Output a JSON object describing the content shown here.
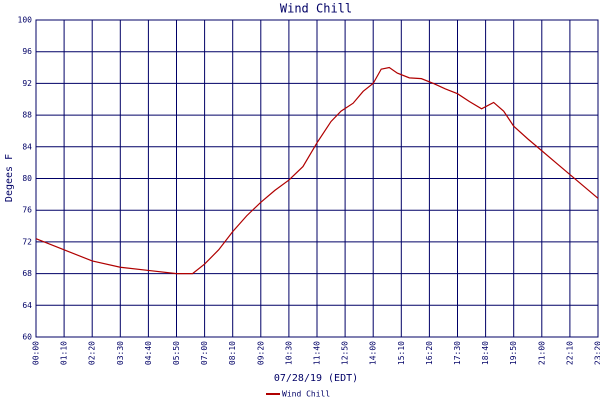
{
  "chart_data": {
    "type": "line",
    "title": "Wind Chill",
    "ylabel": "Degees F",
    "xlabel": "07/28/19 (EDT)",
    "x": [
      0,
      70,
      140,
      210,
      280,
      350,
      390,
      420,
      455,
      490,
      525,
      560,
      595,
      630,
      665,
      700,
      735,
      760,
      790,
      815,
      840,
      860,
      880,
      900,
      930,
      960,
      990,
      1020,
      1050,
      1080,
      1110,
      1140,
      1165,
      1190,
      1225,
      1260,
      1295,
      1330,
      1365,
      1400
    ],
    "series": [
      {
        "name": "Wind Chill",
        "color": "#b00000",
        "values": [
          72.4,
          71,
          69.6,
          68.8,
          68.4,
          68,
          68,
          69.2,
          71,
          73.3,
          75.3,
          77,
          78.5,
          79.8,
          81.5,
          84.5,
          87.2,
          88.5,
          89.5,
          91,
          92,
          93.8,
          94,
          93.3,
          92.7,
          92.6,
          92,
          91.3,
          90.7,
          89.7,
          88.8,
          89.6,
          88.5,
          86.6,
          85,
          83.5,
          82,
          80.5,
          79,
          77.5
        ]
      }
    ],
    "xlim": [
      0,
      1400
    ],
    "xticks": [
      {
        "value": 0,
        "label": "00:00"
      },
      {
        "value": 70,
        "label": "01:10"
      },
      {
        "value": 140,
        "label": "02:20"
      },
      {
        "value": 210,
        "label": "03:30"
      },
      {
        "value": 280,
        "label": "04:40"
      },
      {
        "value": 350,
        "label": "05:50"
      },
      {
        "value": 420,
        "label": "07:00"
      },
      {
        "value": 490,
        "label": "08:10"
      },
      {
        "value": 560,
        "label": "09:20"
      },
      {
        "value": 630,
        "label": "10:30"
      },
      {
        "value": 700,
        "label": "11:40"
      },
      {
        "value": 770,
        "label": "12:50"
      },
      {
        "value": 840,
        "label": "14:00"
      },
      {
        "value": 910,
        "label": "15:10"
      },
      {
        "value": 980,
        "label": "16:20"
      },
      {
        "value": 1050,
        "label": "17:30"
      },
      {
        "value": 1120,
        "label": "18:40"
      },
      {
        "value": 1190,
        "label": "19:50"
      },
      {
        "value": 1260,
        "label": "21:00"
      },
      {
        "value": 1330,
        "label": "22:10"
      },
      {
        "value": 1400,
        "label": "23:20"
      }
    ],
    "ylim": [
      60,
      100
    ],
    "yticks": [
      60,
      64,
      68,
      72,
      76,
      80,
      84,
      88,
      92,
      96,
      100
    ],
    "grid": true,
    "grid_color": "#000066",
    "legend": "bottom"
  }
}
